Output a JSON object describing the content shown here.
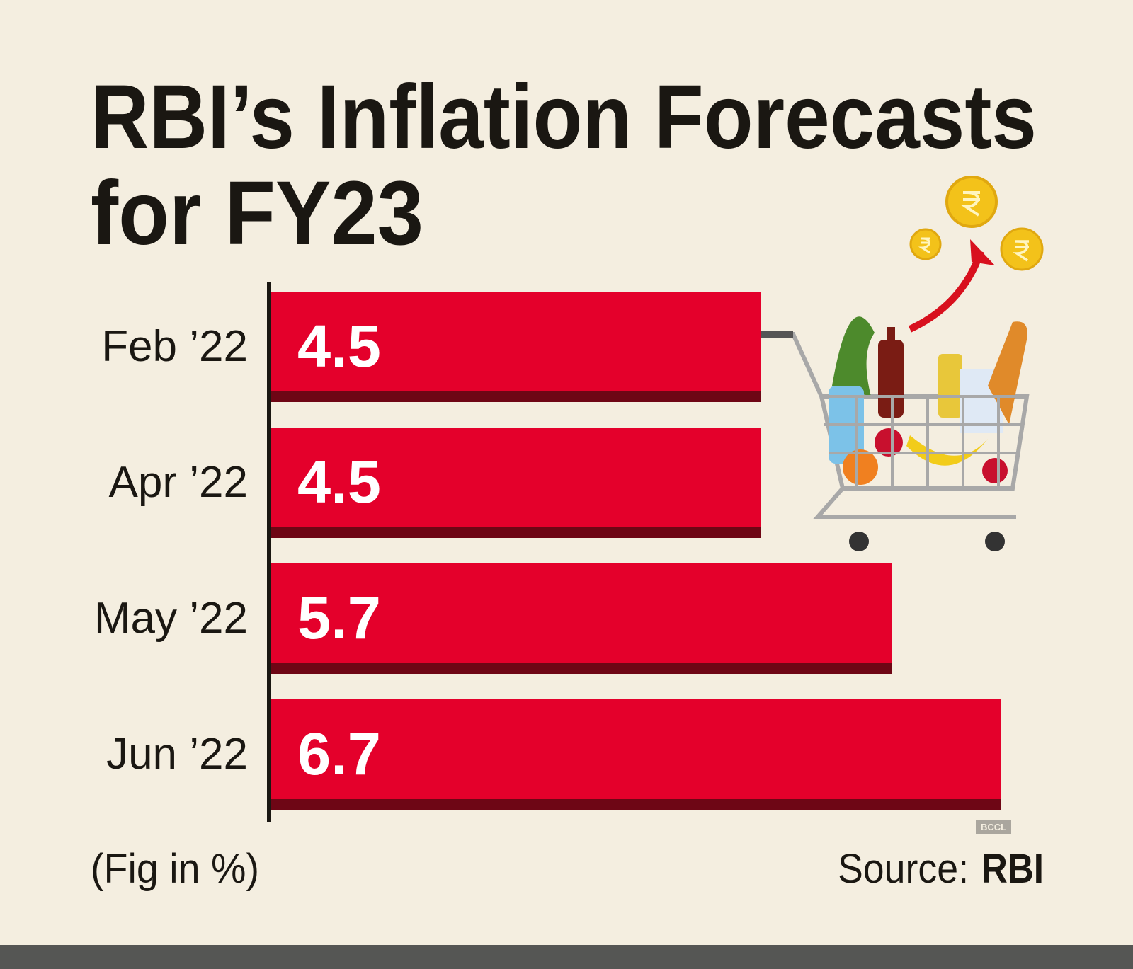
{
  "chart_data": {
    "type": "bar",
    "orientation": "horizontal",
    "title": "RBI’s Inflation Forecasts for FY23",
    "title_lines": [
      "RBI’s Inflation Forecasts",
      "for FY23"
    ],
    "categories": [
      "Feb ’22",
      "Apr ’22",
      "May ’22",
      "Jun ’22"
    ],
    "values": [
      4.5,
      4.5,
      5.7,
      6.7
    ],
    "data_labels": [
      "4.5",
      "4.5",
      "5.7",
      "6.7"
    ],
    "unit_note": "(Fig in %)",
    "xlim": [
      0,
      6.7
    ],
    "grid": false,
    "legend": "none"
  },
  "footer": {
    "source_label": "Source:",
    "source_name": "RBI",
    "watermark": "BCCL"
  },
  "colors": {
    "background": "#f4eee0",
    "bar": "#e4002b",
    "bar_shadow": "#6e0615",
    "text": "#1a1712",
    "bottom_band": "#555654"
  },
  "illustration": "shopping-cart-with-groceries-and-rupee-coins"
}
